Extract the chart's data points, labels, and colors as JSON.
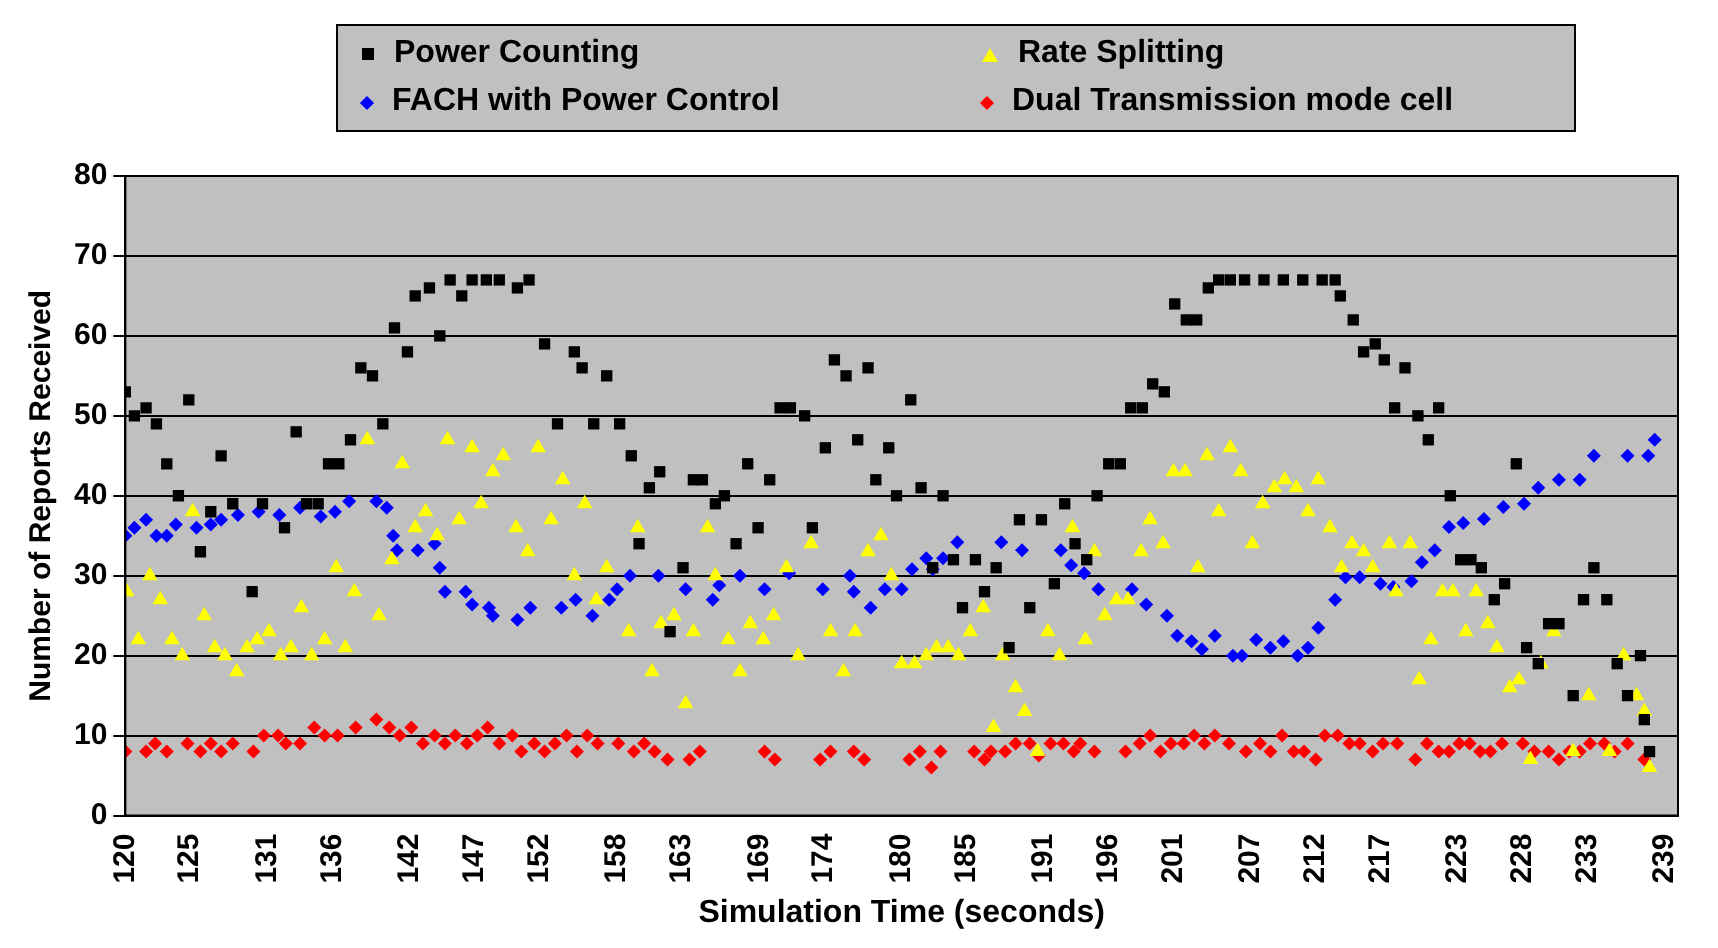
{
  "chart_data": {
    "type": "scatter",
    "xlabel": "Simulation Time (seconds)",
    "ylabel": "Number of Reports Received",
    "xlim": [
      120,
      240
    ],
    "xticks": [
      120,
      125,
      131,
      136,
      142,
      147,
      152,
      158,
      163,
      169,
      174,
      180,
      185,
      191,
      196,
      201,
      207,
      212,
      217,
      223,
      228,
      233,
      239
    ],
    "ylim": [
      0,
      80
    ],
    "yticks": [
      0,
      10,
      20,
      30,
      40,
      50,
      60,
      70,
      80
    ],
    "grid": "y",
    "legend": "top",
    "series": [
      {
        "name": "Power Counting",
        "color": "#000000",
        "marker": "square",
        "x": [
          120,
          120.7,
          121.6,
          122.4,
          123.2,
          124.1,
          124.9,
          125.8,
          126.6,
          127.4,
          128.3,
          129.8,
          130.6,
          132.3,
          133.2,
          134,
          134.9,
          135.7,
          136.5,
          137.4,
          138.2,
          139.1,
          139.9,
          140.8,
          141.8,
          142.4,
          143.5,
          144.3,
          145.1,
          146,
          146.8,
          147.9,
          148.9,
          150.3,
          151.2,
          152.4,
          153.4,
          154.7,
          155.3,
          156.2,
          157.2,
          158.2,
          159.1,
          159.7,
          160.5,
          161.3,
          162.1,
          163.1,
          163.9,
          164.6,
          165.6,
          166.3,
          167.2,
          168.1,
          168.9,
          169.8,
          170.6,
          171.4,
          172.5,
          173.1,
          174.1,
          174.8,
          175.7,
          176.6,
          177.4,
          178,
          179,
          179.6,
          180.7,
          181.5,
          182.4,
          183.2,
          184,
          184.7,
          185.7,
          186.4,
          187.3,
          188.3,
          189.1,
          189.9,
          190.8,
          191.8,
          192.6,
          193.4,
          194.3,
          195.1,
          196,
          196.9,
          197.7,
          198.6,
          199.4,
          200.3,
          201.1,
          202,
          202.8,
          203.7,
          204.5,
          205.4,
          206.5,
          208,
          209.5,
          211,
          212.5,
          213.5,
          213.9,
          214.9,
          215.7,
          216.6,
          217.3,
          218.1,
          218.9,
          219.9,
          220.7,
          221.5,
          222.4,
          223.2,
          224,
          224.8,
          225.8,
          226.6,
          227.5,
          228.3,
          229.2,
          230,
          230.8,
          231.9,
          232.7,
          233.5,
          234.5,
          235.3,
          236.1,
          237.1,
          237.4,
          237.8
        ],
        "values": [
          53,
          50,
          51,
          49,
          44,
          40,
          52,
          33,
          38,
          45,
          39,
          28,
          39,
          36,
          48,
          39,
          39,
          44,
          44,
          47,
          56,
          55,
          49,
          61,
          58,
          65,
          66,
          60,
          67,
          65,
          67,
          67,
          67,
          66,
          67,
          59,
          49,
          58,
          56,
          49,
          55,
          49,
          45,
          34,
          41,
          43,
          23,
          31,
          42,
          42,
          39,
          40,
          34,
          44,
          36,
          42,
          51,
          51,
          50,
          36,
          46,
          57,
          55,
          47,
          56,
          42,
          46,
          40,
          52,
          41,
          31,
          40,
          32,
          26,
          32,
          28,
          31,
          21,
          37,
          26,
          37,
          29,
          39,
          34,
          32,
          40,
          44,
          44,
          51,
          51,
          54,
          53,
          64,
          62,
          62,
          66,
          67,
          67,
          67,
          67,
          67,
          67,
          67,
          67,
          65,
          62,
          58,
          59,
          57,
          51,
          56,
          50,
          47,
          51,
          40,
          32,
          32,
          31,
          27,
          29,
          44,
          21,
          19,
          24,
          24,
          15,
          27,
          31,
          27,
          19,
          15,
          20,
          12,
          8
        ]
      },
      {
        "name": "Rate Splitting",
        "color": "#ffff00",
        "marker": "triangle",
        "x": [
          120.1,
          121,
          121.9,
          122.7,
          123.6,
          124.4,
          125.2,
          126.1,
          126.9,
          127.7,
          128.6,
          129.4,
          130.2,
          131.1,
          132,
          132.8,
          133.6,
          134.4,
          135.4,
          136.3,
          137,
          137.7,
          138.7,
          139.6,
          140.6,
          141.4,
          142.4,
          143.2,
          144.1,
          144.9,
          145.8,
          146.8,
          147.5,
          148.4,
          149.2,
          150.2,
          151.1,
          151.9,
          152.9,
          153.8,
          154.7,
          155.5,
          156.4,
          157.2,
          158.9,
          159.6,
          160.7,
          161.4,
          162.4,
          163.3,
          163.9,
          165,
          165.6,
          166.6,
          167.5,
          168.3,
          169.3,
          170.1,
          171.1,
          172,
          173,
          174.5,
          175.5,
          176.4,
          177.4,
          178.4,
          179.2,
          180,
          181,
          181.9,
          182.7,
          183.6,
          184.4,
          185.3,
          186.3,
          187.1,
          187.8,
          188.8,
          189.5,
          190.5,
          191.3,
          192.2,
          193.2,
          194.2,
          194.9,
          195.7,
          196.6,
          197.5,
          198.5,
          199.2,
          200.2,
          201,
          201.9,
          202.9,
          203.6,
          204.5,
          205.4,
          206.2,
          207.1,
          207.9,
          208.8,
          209.6,
          210.5,
          211.4,
          212.2,
          213.1,
          214,
          214.8,
          215.7,
          216.4,
          217.7,
          218.2,
          219.3,
          220,
          220.9,
          221.8,
          222.6,
          223.6,
          224.4,
          225.3,
          226,
          227,
          227.7,
          228.6,
          229.4,
          230.4,
          231.9,
          233.1,
          234.7,
          235.8,
          236.8,
          237.4,
          237.8
        ],
        "values": [
          28,
          22,
          30,
          27,
          22,
          20,
          38,
          25,
          21,
          20,
          18,
          21,
          22,
          23,
          20,
          21,
          26,
          20,
          22,
          31,
          21,
          28,
          47,
          25,
          32,
          44,
          36,
          38,
          35,
          47,
          37,
          46,
          39,
          43,
          45,
          36,
          33,
          46,
          37,
          42,
          30,
          39,
          27,
          31,
          23,
          36,
          18,
          24,
          25,
          14,
          23,
          36,
          30,
          22,
          18,
          24,
          22,
          25,
          31,
          20,
          34,
          23,
          18,
          23,
          33,
          35,
          30,
          19,
          19,
          20,
          21,
          21,
          20,
          23,
          26,
          11,
          20,
          16,
          13,
          8,
          23,
          20,
          36,
          22,
          33,
          25,
          27,
          27,
          33,
          37,
          34,
          43,
          43,
          31,
          45,
          38,
          46,
          43,
          34,
          39,
          41,
          42,
          41,
          38,
          42,
          36,
          31,
          34,
          33,
          31,
          34,
          28,
          34,
          17,
          22,
          28,
          28,
          23,
          28,
          24,
          21,
          16,
          17,
          7,
          19,
          23,
          8,
          15,
          8,
          20,
          15,
          13,
          6
        ]
      },
      {
        "name": "FACH with Power Control",
        "color": "#0000ff",
        "marker": "diamond",
        "x": [
          120,
          120.7,
          121.6,
          122.4,
          123.2,
          123.9,
          125.5,
          126.6,
          127.4,
          128.7,
          130.3,
          131.9,
          133.5,
          135.1,
          136.2,
          137.3,
          139.4,
          140.2,
          140.7,
          141,
          142.6,
          143.9,
          144.3,
          144.7,
          146.3,
          146.8,
          148.1,
          148.4,
          150.3,
          151.3,
          153.7,
          154.8,
          156.1,
          157.4,
          158,
          159,
          161.2,
          163.3,
          165.4,
          165.9,
          167.5,
          169.4,
          171.3,
          173.9,
          176,
          176.3,
          177.6,
          178.7,
          180,
          180.8,
          181.9,
          182.4,
          183.2,
          184.3,
          187.7,
          189.3,
          192.3,
          193.1,
          194.1,
          195.2,
          197.8,
          198.9,
          200.5,
          201.3,
          202.4,
          203.2,
          204.2,
          205.6,
          206.3,
          207.4,
          208.5,
          209.5,
          210.6,
          211.4,
          212.2,
          213.5,
          214.3,
          215.4,
          217,
          218,
          219.4,
          220.2,
          221.2,
          222.3,
          223.4,
          225,
          226.5,
          228.1,
          229.2,
          230.8,
          232.4,
          233.5,
          236.1,
          237.7,
          238.2
        ],
        "values": [
          35,
          36,
          37,
          35,
          35,
          36.4,
          36,
          36.4,
          37,
          37.6,
          38,
          37.6,
          38.5,
          37.4,
          38,
          39.3,
          39.3,
          38.5,
          35,
          33.2,
          33.2,
          34,
          31,
          28,
          28,
          26.4,
          26,
          25,
          24.5,
          26,
          26,
          27,
          25,
          27,
          28.3,
          30,
          30,
          28.3,
          27,
          28.8,
          30,
          28.3,
          30.3,
          28.3,
          30,
          28,
          26,
          28.3,
          28.3,
          30.8,
          32.2,
          30.8,
          32.2,
          34.2,
          34.2,
          33.2,
          33.2,
          31.3,
          30.3,
          28.3,
          28.3,
          26.4,
          25,
          22.5,
          21.8,
          20.8,
          22.5,
          20,
          20,
          22,
          21,
          21.8,
          20,
          21,
          23.5,
          27,
          29.8,
          29.8,
          29,
          28.6,
          29.3,
          31.7,
          33.2,
          36.1,
          36.6,
          37.1,
          38.6,
          39,
          41,
          42,
          42,
          45,
          45,
          45,
          47
        ]
      },
      {
        "name": "Dual Transmission mode cell",
        "color": "#ff0000",
        "marker": "diamond",
        "x": [
          120,
          121.6,
          122.3,
          123.2,
          124.8,
          125.8,
          126.6,
          127.4,
          128.3,
          129.9,
          130.7,
          131.8,
          132.4,
          133.5,
          134.6,
          135.4,
          136.4,
          137.8,
          139.4,
          140.4,
          141.2,
          142.1,
          143,
          143.9,
          144.7,
          145.5,
          146.4,
          147.2,
          148,
          148.9,
          149.9,
          150.6,
          151.6,
          152.4,
          153.2,
          154.1,
          154.9,
          155.7,
          156.5,
          158.1,
          159.3,
          160.1,
          160.9,
          161.9,
          163.6,
          164.4,
          169.4,
          170.2,
          173.7,
          174.5,
          176.3,
          177.1,
          180.6,
          181.4,
          182.3,
          183,
          185.6,
          186.4,
          186.9,
          188,
          188.8,
          189.9,
          190.6,
          191.5,
          192.5,
          193.3,
          193.8,
          194.9,
          197.3,
          198.4,
          199.2,
          200,
          200.8,
          201.8,
          202.6,
          203.4,
          204.2,
          205.3,
          206.6,
          207.7,
          208.5,
          209.4,
          210.3,
          211.1,
          212,
          212.7,
          213.7,
          214.6,
          215.4,
          216.4,
          217.2,
          218.3,
          219.7,
          220.6,
          221.5,
          222.3,
          223.1,
          223.9,
          224.7,
          225.5,
          226.4,
          228,
          228.9,
          230,
          230.8,
          231.6,
          232.4,
          233.2,
          234.3,
          235.1,
          236.1,
          237.4
        ],
        "values": [
          8,
          8,
          9,
          8,
          9,
          8,
          9,
          8,
          9,
          8,
          10,
          10,
          9,
          9,
          11,
          10,
          10,
          11,
          12,
          11,
          10,
          11,
          9,
          10,
          9,
          10,
          9,
          10,
          11,
          9,
          10,
          8,
          9,
          8,
          9,
          10,
          8,
          10,
          9,
          9,
          8,
          9,
          8,
          7,
          7,
          8,
          8,
          7,
          7,
          8,
          8,
          7,
          7,
          8,
          6,
          8,
          8,
          7,
          8,
          8,
          9,
          9,
          7.5,
          9,
          9,
          8,
          9,
          8,
          8,
          9,
          10,
          8,
          9,
          9,
          10,
          9,
          10,
          9,
          8,
          9,
          8,
          10,
          8,
          8,
          7,
          10,
          10,
          9,
          9,
          8,
          9,
          9,
          7,
          9,
          8,
          8,
          9,
          9,
          8,
          8,
          9,
          9,
          8,
          8,
          7,
          8,
          8,
          9,
          9,
          8,
          9,
          7
        ]
      }
    ]
  }
}
